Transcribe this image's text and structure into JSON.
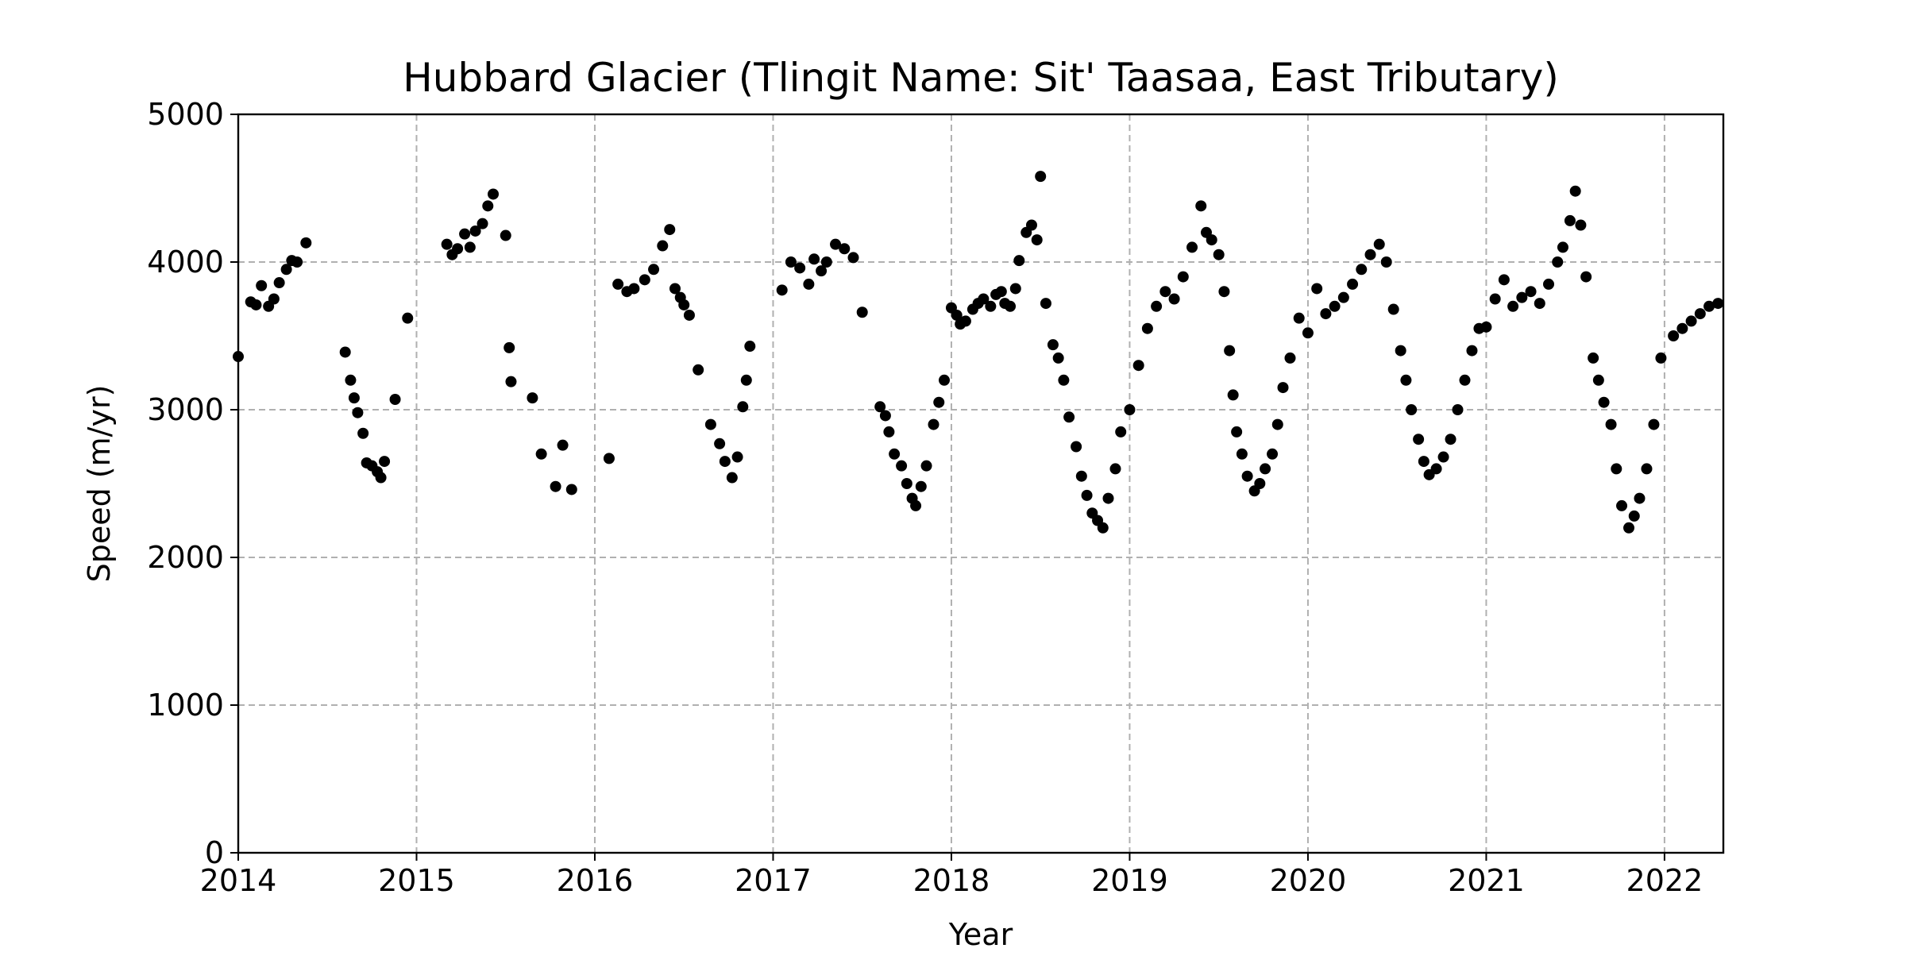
{
  "chart_data": {
    "type": "scatter",
    "title": "Hubbard Glacier (Tlingit Name: Sit' Taasaa, East Tributary)",
    "xlabel": "Year",
    "ylabel": "Speed (m/yr)",
    "xlim": [
      2014.0,
      2022.33
    ],
    "ylim": [
      0,
      5000
    ],
    "x_ticks": [
      2014,
      2015,
      2016,
      2017,
      2018,
      2019,
      2020,
      2021,
      2022
    ],
    "y_ticks": [
      0,
      1000,
      2000,
      3000,
      4000,
      5000
    ],
    "grid": true,
    "grid_style": "dashed",
    "marker_color": "#000000",
    "series": [
      {
        "x": [
          2014.0,
          2014.07,
          2014.1,
          2014.13,
          2014.17,
          2014.2,
          2014.23,
          2014.27,
          2014.3,
          2014.33,
          2014.38,
          2014.6,
          2014.63,
          2014.65,
          2014.67,
          2014.7,
          2014.72,
          2014.75,
          2014.78,
          2014.8,
          2014.82,
          2014.88,
          2014.95,
          2015.17,
          2015.2,
          2015.23,
          2015.27,
          2015.3,
          2015.33,
          2015.37,
          2015.4,
          2015.43,
          2015.5,
          2015.52,
          2015.53,
          2015.65,
          2015.7,
          2015.78,
          2015.82,
          2015.87,
          2016.08,
          2016.13,
          2016.18,
          2016.22,
          2016.28,
          2016.33,
          2016.38,
          2016.42,
          2016.45,
          2016.48,
          2016.5,
          2016.53,
          2016.58,
          2016.65,
          2016.7,
          2016.73,
          2016.77,
          2016.8,
          2016.83,
          2016.85,
          2016.87,
          2017.05,
          2017.1,
          2017.15,
          2017.2,
          2017.23,
          2017.27,
          2017.3,
          2017.35,
          2017.4,
          2017.45,
          2017.5,
          2017.6,
          2017.63,
          2017.65,
          2017.68,
          2017.72,
          2017.75,
          2017.78,
          2017.8,
          2017.83,
          2017.86,
          2017.9,
          2017.93,
          2017.96,
          2018.0,
          2018.03,
          2018.05,
          2018.08,
          2018.12,
          2018.15,
          2018.18,
          2018.22,
          2018.25,
          2018.28,
          2018.3,
          2018.33,
          2018.36,
          2018.38,
          2018.42,
          2018.45,
          2018.48,
          2018.5,
          2018.53,
          2018.57,
          2018.6,
          2018.63,
          2018.66,
          2018.7,
          2018.73,
          2018.76,
          2018.79,
          2018.82,
          2018.85,
          2018.88,
          2018.92,
          2018.95,
          2019.0,
          2019.05,
          2019.1,
          2019.15,
          2019.2,
          2019.25,
          2019.3,
          2019.35,
          2019.4,
          2019.43,
          2019.46,
          2019.5,
          2019.53,
          2019.56,
          2019.58,
          2019.6,
          2019.63,
          2019.66,
          2019.7,
          2019.73,
          2019.76,
          2019.8,
          2019.83,
          2019.86,
          2019.9,
          2019.95,
          2020.0,
          2020.05,
          2020.1,
          2020.15,
          2020.2,
          2020.25,
          2020.3,
          2020.35,
          2020.4,
          2020.44,
          2020.48,
          2020.52,
          2020.55,
          2020.58,
          2020.62,
          2020.65,
          2020.68,
          2020.72,
          2020.76,
          2020.8,
          2020.84,
          2020.88,
          2020.92,
          2020.96,
          2021.0,
          2021.05,
          2021.1,
          2021.15,
          2021.2,
          2021.25,
          2021.3,
          2021.35,
          2021.4,
          2021.43,
          2021.47,
          2021.5,
          2021.53,
          2021.56,
          2021.6,
          2021.63,
          2021.66,
          2021.7,
          2021.73,
          2021.76,
          2021.8,
          2021.83,
          2021.86,
          2021.9,
          2021.94,
          2021.98,
          2022.05,
          2022.1,
          2022.15,
          2022.2,
          2022.25,
          2022.3
        ],
        "y": [
          3360,
          3730,
          3710,
          3840,
          3700,
          3750,
          3860,
          3950,
          4010,
          4000,
          4130,
          3390,
          3200,
          3080,
          2980,
          2840,
          2640,
          2620,
          2580,
          2540,
          2650,
          3070,
          3620,
          4120,
          4050,
          4090,
          4190,
          4100,
          4210,
          4260,
          4380,
          4460,
          4180,
          3420,
          3190,
          3080,
          2700,
          2480,
          2760,
          2460,
          2670,
          3850,
          3800,
          3820,
          3880,
          3950,
          4110,
          4220,
          3820,
          3760,
          3710,
          3640,
          3270,
          2900,
          2770,
          2650,
          2540,
          2680,
          3020,
          3200,
          3430,
          3810,
          4000,
          3960,
          3850,
          4020,
          3940,
          4000,
          4120,
          4090,
          4030,
          3660,
          3020,
          2960,
          2850,
          2700,
          2620,
          2500,
          2400,
          2350,
          2480,
          2620,
          2900,
          3050,
          3200,
          3690,
          3640,
          3580,
          3600,
          3680,
          3720,
          3750,
          3700,
          3780,
          3800,
          3720,
          3700,
          3820,
          4010,
          4200,
          4250,
          4150,
          4580,
          3720,
          3440,
          3350,
          3200,
          2950,
          2750,
          2550,
          2420,
          2300,
          2250,
          2200,
          2400,
          2600,
          2850,
          3000,
          3300,
          3550,
          3700,
          3800,
          3750,
          3900,
          4100,
          4380,
          4200,
          4150,
          4050,
          3800,
          3400,
          3100,
          2850,
          2700,
          2550,
          2450,
          2500,
          2600,
          2700,
          2900,
          3150,
          3350,
          3620,
          3520,
          3820,
          3650,
          3700,
          3760,
          3850,
          3950,
          4050,
          4120,
          4000,
          3680,
          3400,
          3200,
          3000,
          2800,
          2650,
          2560,
          2600,
          2680,
          2800,
          3000,
          3200,
          3400,
          3550,
          3560,
          3750,
          3880,
          3700,
          3760,
          3800,
          3720,
          3850,
          4000,
          4100,
          4280,
          4480,
          4250,
          3900,
          3350,
          3200,
          3050,
          2900,
          2600,
          2350,
          2200,
          2280,
          2400,
          2600,
          2900,
          3350,
          3500,
          3550,
          3600,
          3650,
          3700,
          3720
        ]
      }
    ]
  }
}
